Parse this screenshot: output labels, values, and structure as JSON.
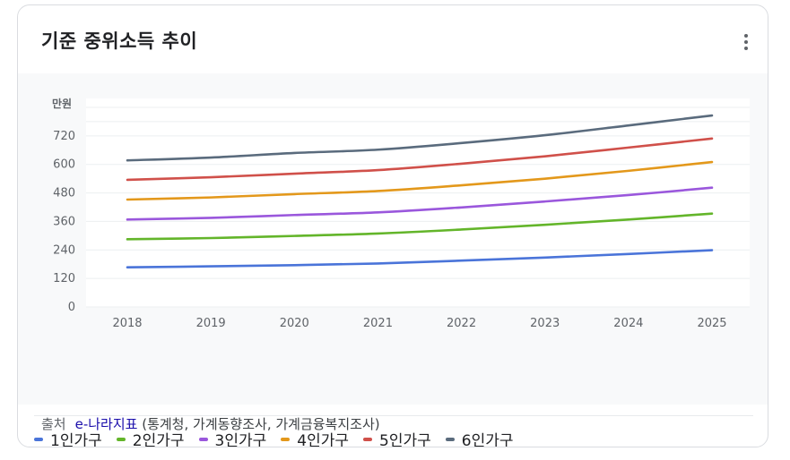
{
  "card": {
    "title": "기준 중위소득 추이",
    "source_label": "출처",
    "source_link": "e-나라지표",
    "source_detail": "(통계청, 가계동향조사, 가계금융복지조사)"
  },
  "colors": {
    "grid": "#eceff1",
    "axis_text": "#5f6368",
    "s1": "#4a74d9",
    "s2": "#63b52a",
    "s3": "#9a57dc",
    "s4": "#e3981b",
    "s5": "#d0504a",
    "s6": "#5a6b7d"
  },
  "chart_data": {
    "type": "line",
    "ylabel": "만원",
    "x": [
      "2018",
      "2019",
      "2020",
      "2021",
      "2022",
      "2023",
      "2024",
      "2025"
    ],
    "ylim": [
      0,
      840
    ],
    "yticks": [
      0,
      120,
      240,
      360,
      480,
      600,
      720
    ],
    "grid": true,
    "legend_position": "bottom",
    "series": [
      {
        "name": "1인가구",
        "color": "#4a74d9",
        "values": [
          167,
          171,
          176,
          183,
          195,
          208,
          223,
          239
        ]
      },
      {
        "name": "2인가구",
        "color": "#63b52a",
        "values": [
          285,
          290,
          299,
          309,
          326,
          346,
          368,
          393
        ]
      },
      {
        "name": "3인가구",
        "color": "#9a57dc",
        "values": [
          368,
          375,
          387,
          398,
          419,
          444,
          471,
          502
        ]
      },
      {
        "name": "4인가구",
        "color": "#e3981b",
        "values": [
          452,
          461,
          475,
          488,
          512,
          540,
          573,
          610
        ]
      },
      {
        "name": "5인가구",
        "color": "#d0504a",
        "values": [
          535,
          546,
          561,
          576,
          603,
          634,
          671,
          709
        ]
      },
      {
        "name": "6인가구",
        "color": "#5a6b7d",
        "values": [
          617,
          629,
          648,
          662,
          690,
          723,
          764,
          806
        ]
      }
    ]
  }
}
